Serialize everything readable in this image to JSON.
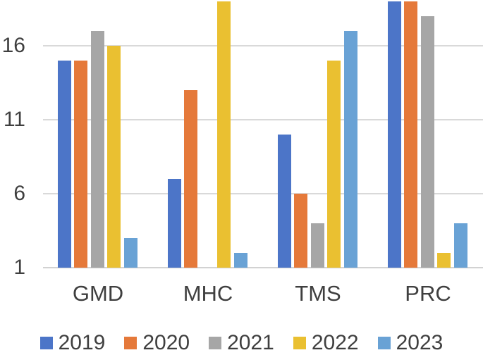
{
  "chart_data": {
    "type": "bar",
    "title": "",
    "xlabel": "",
    "ylabel": "",
    "categories": [
      "GMD",
      "MHC",
      "TMS",
      "PRC"
    ],
    "series": [
      {
        "name": "2019",
        "color": "#4C75C8",
        "values": [
          15,
          7,
          10,
          19
        ]
      },
      {
        "name": "2020",
        "color": "#E5793A",
        "values": [
          15,
          13,
          6,
          19
        ]
      },
      {
        "name": "2021",
        "color": "#A6A6A6",
        "values": [
          17,
          1,
          4,
          18
        ]
      },
      {
        "name": "2022",
        "color": "#EAC031",
        "values": [
          16,
          19,
          15,
          2
        ]
      },
      {
        "name": "2023",
        "color": "#69A2D5",
        "values": [
          3,
          2,
          17,
          4
        ]
      }
    ],
    "y_axis": {
      "min": 1,
      "max": 19.1,
      "ticks": [
        1,
        6,
        11,
        16
      ]
    },
    "grid": true,
    "legend_position": "bottom",
    "colors": {
      "gridline": "#D9D9D9",
      "axis_line": "#D2D2D2",
      "text": "#3F3F3F",
      "background": "#FFFFFF"
    }
  }
}
